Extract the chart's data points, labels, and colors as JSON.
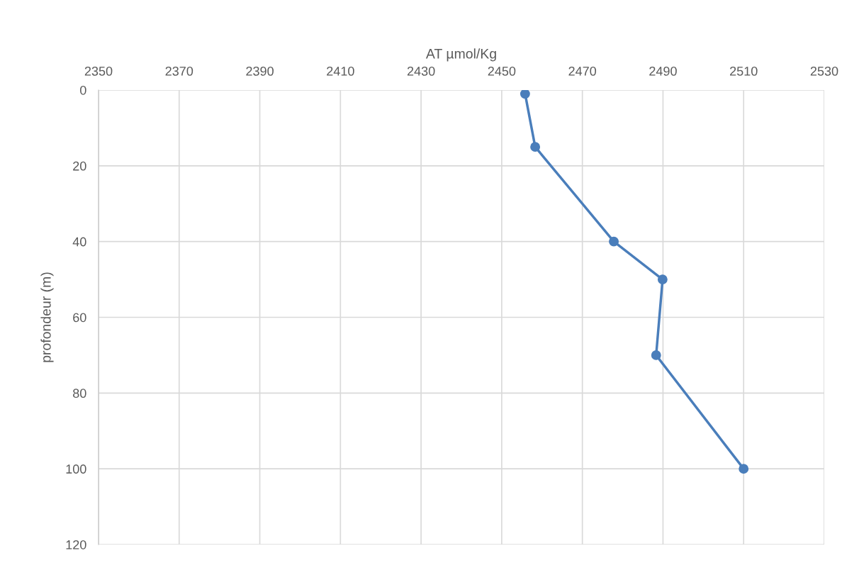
{
  "chart_data": {
    "type": "line",
    "xlabel": "AT µmol/Kg",
    "ylabel": "profondeur (m)",
    "series": [
      {
        "color": "#4a7ebb",
        "x": [
          2455.8,
          2458.3,
          2477.8,
          2489.9,
          2488.3,
          2510.0
        ],
        "values": [
          1,
          15,
          40,
          50,
          70,
          100
        ]
      }
    ],
    "xlim": [
      2350,
      2530
    ],
    "xticks": [
      2350,
      2370,
      2390,
      2410,
      2430,
      2450,
      2470,
      2490,
      2510,
      2530
    ],
    "ylim": [
      120,
      0
    ],
    "yticks": [
      0,
      20,
      40,
      60,
      80,
      100,
      120
    ],
    "grid": true,
    "marker": "circle",
    "line_style": "solid"
  }
}
